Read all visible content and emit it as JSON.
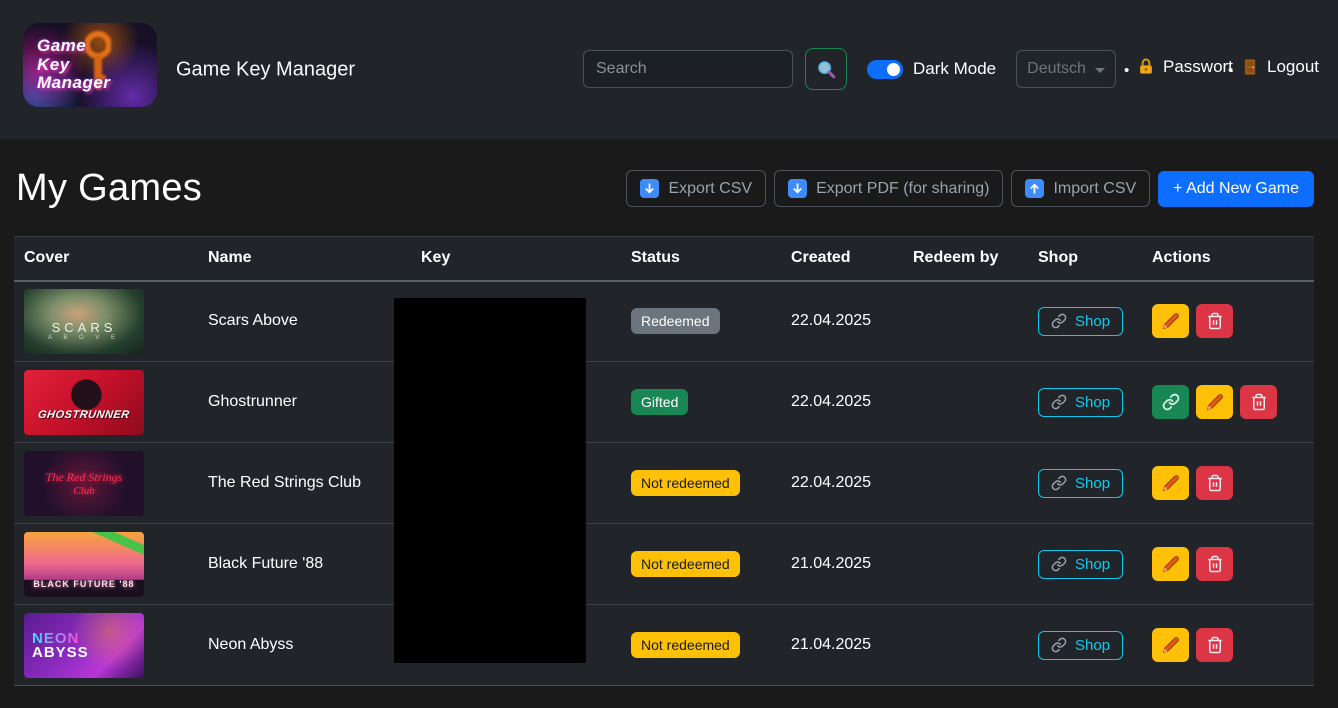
{
  "header": {
    "logo_lines": [
      "Game",
      "Key",
      "Manager"
    ],
    "app_title": "Game Key Manager",
    "search_placeholder": "Search",
    "dark_mode_label": "Dark Mode",
    "language_selected": "Deutsch",
    "separator": "•",
    "password_label": "Passwort",
    "logout_label": "Logout",
    "icons": {
      "search_button": "magnifier-icon",
      "password": "lock-icon",
      "logout": "door-icon",
      "language": "chevron-down-icon"
    }
  },
  "page": {
    "title": "My Games",
    "toolbar": {
      "export_csv_label": "Export CSV",
      "export_pdf_label": "Export PDF (for sharing)",
      "import_csv_label": "Import CSV",
      "add_new_game_label": "+ Add New Game",
      "icons": {
        "export": "download-arrow-icon",
        "import": "upload-arrow-icon"
      }
    }
  },
  "table": {
    "columns": [
      "Cover",
      "Name",
      "Key",
      "Status",
      "Created",
      "Redeem by",
      "Shop",
      "Actions"
    ],
    "shop_button_label": "Shop",
    "shop_button_icon": "link-icon",
    "action_icons": {
      "link": "link-icon",
      "edit": "pencil-icon",
      "delete": "trash-icon"
    },
    "rows": [
      {
        "name": "Scars Above",
        "cover_style": "scars-above",
        "cover_lines": [
          "SCARS",
          "A B O V E"
        ],
        "key_redacted": true,
        "status": "Redeemed",
        "status_variant": "secondary",
        "created": "22.04.2025",
        "redeem_by": "",
        "actions": [
          "edit",
          "delete"
        ]
      },
      {
        "name": "Ghostrunner",
        "cover_style": "ghostrunner",
        "cover_lines": [
          "GHOSTRUNNER"
        ],
        "key_redacted": true,
        "status": "Gifted",
        "status_variant": "success",
        "created": "22.04.2025",
        "redeem_by": "",
        "actions": [
          "link",
          "edit",
          "delete"
        ]
      },
      {
        "name": "The Red Strings Club",
        "cover_style": "red-strings-club",
        "cover_lines": [
          "The Red Strings",
          "Club"
        ],
        "key_redacted": true,
        "status": "Not redeemed",
        "status_variant": "warning",
        "created": "22.04.2025",
        "redeem_by": "",
        "actions": [
          "edit",
          "delete"
        ]
      },
      {
        "name": "Black Future '88",
        "cover_style": "black-future-88",
        "cover_lines": [
          "BLACK FUTURE '88"
        ],
        "key_redacted": true,
        "status": "Not redeemed",
        "status_variant": "warning",
        "created": "21.04.2025",
        "redeem_by": "",
        "actions": [
          "edit",
          "delete"
        ]
      },
      {
        "name": "Neon Abyss",
        "cover_style": "neon-abyss",
        "cover_lines": [
          "NEON",
          "ABYSS"
        ],
        "key_redacted": true,
        "status": "Not redeemed",
        "status_variant": "warning",
        "created": "21.04.2025",
        "redeem_by": "",
        "actions": [
          "edit",
          "delete"
        ]
      }
    ]
  },
  "colors": {
    "header_bg": "#212529",
    "page_bg": "#1a1a1a",
    "table_bg": "#212529",
    "accent_blue": "#0d6efd",
    "info_cyan": "#0dcaf0",
    "warning_yellow": "#ffc107",
    "danger_red": "#dc3545",
    "success_green": "#198754",
    "badge_gray": "#6c757d",
    "redaction_black": "#000000"
  }
}
